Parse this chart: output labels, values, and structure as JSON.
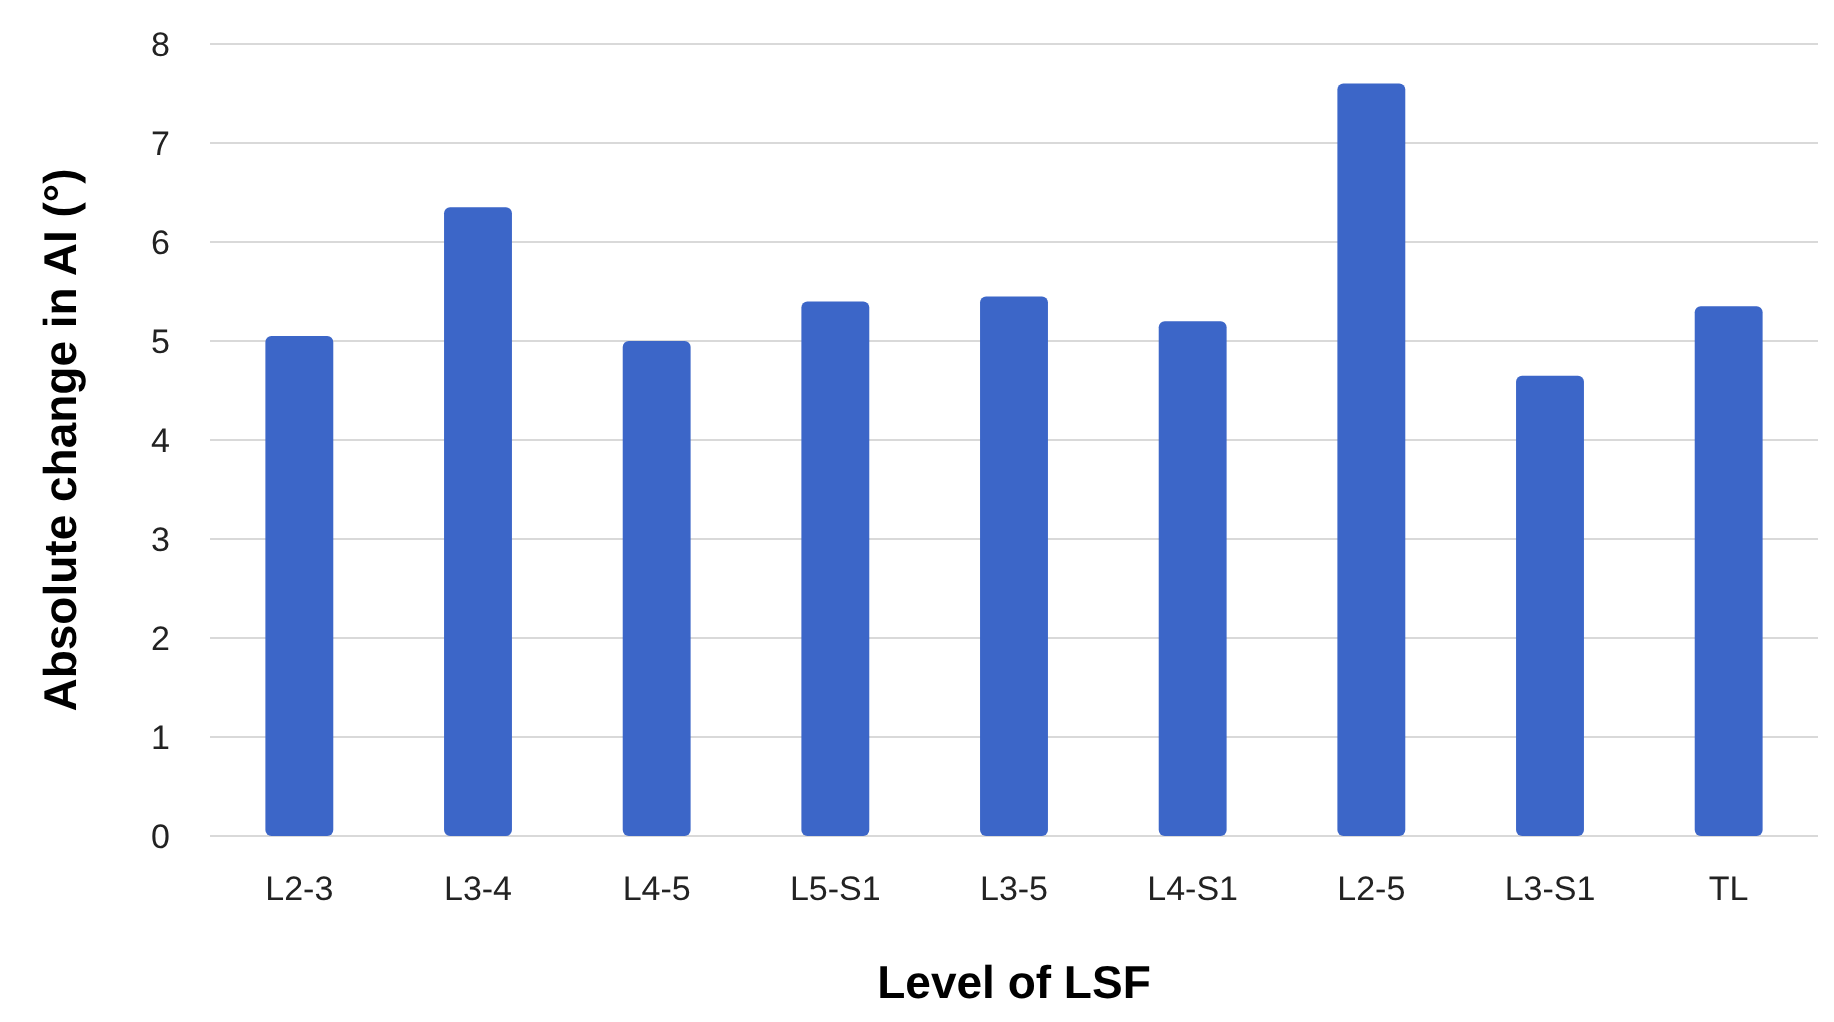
{
  "chart_data": {
    "type": "bar",
    "xlabel": "Level of LSF",
    "ylabel": "Absolute change in AI (°)",
    "categories": [
      "L2-3",
      "L3-4",
      "L4-5",
      "L5-S1",
      "L3-5",
      "L4-S1",
      "L2-5",
      "L3-S1",
      "TL"
    ],
    "values": [
      5.05,
      6.35,
      5.0,
      5.4,
      5.45,
      5.2,
      7.6,
      4.65,
      5.35
    ],
    "color": "#3c66c8",
    "ylim": [
      0,
      8
    ],
    "yticks": [
      0,
      1,
      2,
      3,
      4,
      5,
      6,
      7,
      8
    ],
    "grid": "y"
  }
}
